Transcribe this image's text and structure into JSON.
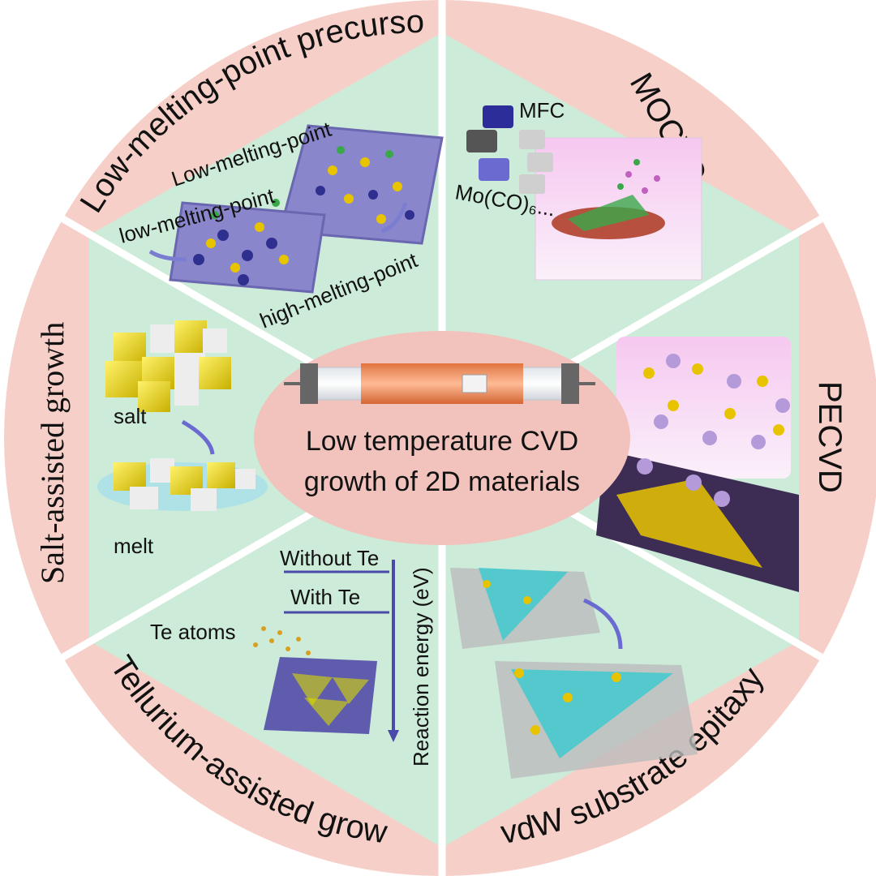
{
  "center": {
    "line1": "Low temperature CVD",
    "line2": "growth of 2D materials"
  },
  "segments": {
    "low_melting": {
      "title": "Low-melting-point precursours",
      "label_low": "low-melting-point",
      "label_low2": "Low-melting-point",
      "label_high": "high-melting-point"
    },
    "mocvd": {
      "title": "MOCVD",
      "label_mfc": "MFC",
      "label_precursor": "Mo(CO)₆..."
    },
    "pecvd": {
      "title": "PECVD"
    },
    "vdw": {
      "title": "vdW substrate epitaxy"
    },
    "tellurium": {
      "title": "Tellurium-assisted growth",
      "label_without": "Without Te",
      "label_with": "With Te",
      "label_atoms": "Te atoms",
      "axis_label": "Reaction energy (eV)"
    },
    "salt": {
      "title": "Salt-assisted growth",
      "label_salt": "salt",
      "label_melt": "melt"
    }
  },
  "colors": {
    "outer_ring": "#f6d0c8",
    "inner_sector": "#cdebd9",
    "center_ellipse": "#f2c3bc",
    "divider": "#ffffff",
    "substrate": "#6a66b0",
    "energy_axis": "#4a4aa8",
    "energy_label": "#b02a2a"
  }
}
